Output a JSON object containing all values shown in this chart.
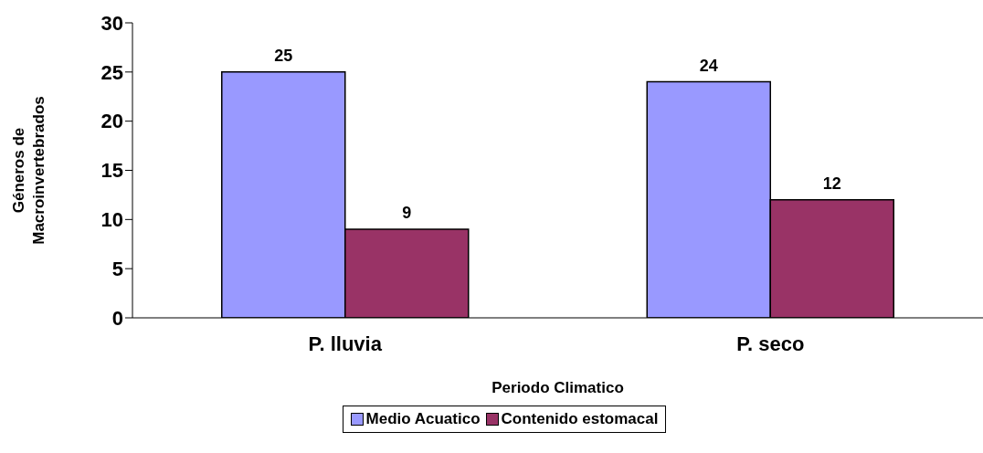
{
  "chart_data": {
    "type": "bar",
    "xlabel": "Periodo Climatico",
    "ylabel": "Géneros de\nMacroinvertebrados",
    "categories": [
      "P. lluvia",
      "P. seco"
    ],
    "series": [
      {
        "name": "Medio Acuatico",
        "color": "#9999ff",
        "values": [
          25,
          24
        ]
      },
      {
        "name": "Contenido estomacal",
        "color": "#993366",
        "values": [
          9,
          12
        ]
      }
    ],
    "ylim": [
      0,
      30
    ],
    "yticks": [
      0,
      5,
      10,
      15,
      20,
      25,
      30
    ],
    "grid": false,
    "legend": "bottom",
    "data_labels": true
  }
}
